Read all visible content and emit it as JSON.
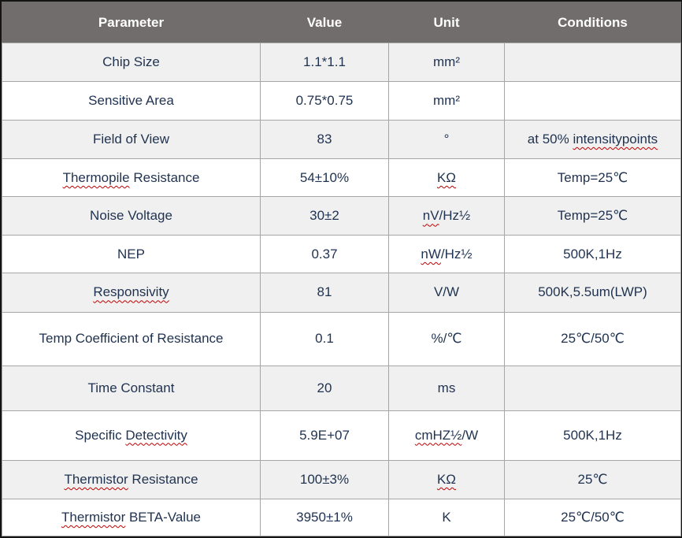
{
  "colors": {
    "header_bg": "#716d6c",
    "header_text": "#ffffff",
    "body_text": "#1f3250",
    "row_alt_bg": "#f0f0f0",
    "row_bg": "#ffffff",
    "grid_border": "#a6a6a6",
    "outer_border": "#141414",
    "squiggle": "#c00000"
  },
  "table": {
    "columns": [
      "Parameter",
      "Value",
      "Unit",
      "Conditions"
    ],
    "rows": [
      {
        "parameter": {
          "text": "Chip Size"
        },
        "value": {
          "text": "1.1*1.1"
        },
        "unit": {
          "text": "mm²"
        },
        "conditions": {
          "text": ""
        }
      },
      {
        "parameter": {
          "text": "Sensitive Area"
        },
        "value": {
          "text": "0.75*0.75"
        },
        "unit": {
          "text": "mm²"
        },
        "conditions": {
          "text": ""
        }
      },
      {
        "parameter": {
          "text": "Field of View"
        },
        "value": {
          "text": "83"
        },
        "unit": {
          "text": "°"
        },
        "conditions": {
          "text": "at 50% intensitypoints",
          "misspelled": [
            "intensitypoints"
          ]
        }
      },
      {
        "parameter": {
          "text": "Thermopile Resistance",
          "misspelled": [
            "Thermopile"
          ]
        },
        "value": {
          "text": "54±10%"
        },
        "unit": {
          "text": "KΩ",
          "misspelled": [
            "KΩ"
          ]
        },
        "conditions": {
          "text": "Temp=25℃"
        }
      },
      {
        "parameter": {
          "text": "Noise Voltage"
        },
        "value": {
          "text": "30±2"
        },
        "unit": {
          "text": "nV/Hz½",
          "misspelled": [
            "nV"
          ]
        },
        "conditions": {
          "text": "Temp=25℃"
        }
      },
      {
        "parameter": {
          "text": "NEP"
        },
        "value": {
          "text": "0.37"
        },
        "unit": {
          "text": "nW/Hz½",
          "misspelled": [
            "nW"
          ]
        },
        "conditions": {
          "text": "500K,1Hz"
        }
      },
      {
        "parameter": {
          "text": "Responsivity",
          "misspelled": [
            "Responsivity"
          ]
        },
        "value": {
          "text": "81"
        },
        "unit": {
          "text": "V/W"
        },
        "conditions": {
          "text": "500K,5.5um(LWP)"
        }
      },
      {
        "parameter": {
          "text": "Temp Coefficient of Resistance"
        },
        "value": {
          "text": "0.1"
        },
        "unit": {
          "text": "%/℃"
        },
        "conditions": {
          "text": "25℃/50℃"
        }
      },
      {
        "parameter": {
          "text": "Time Constant"
        },
        "value": {
          "text": "20"
        },
        "unit": {
          "text": "ms"
        },
        "conditions": {
          "text": ""
        }
      },
      {
        "parameter": {
          "text": "Specific Detectivity",
          "misspelled": [
            "Detectivity"
          ]
        },
        "value": {
          "text": "5.9E+07"
        },
        "unit": {
          "text": "cmHZ½/W",
          "misspelled": [
            "cmHZ½"
          ]
        },
        "conditions": {
          "text": "500K,1Hz"
        }
      },
      {
        "parameter": {
          "text": "Thermistor Resistance",
          "misspelled": [
            "Thermistor"
          ]
        },
        "value": {
          "text": "100±3%"
        },
        "unit": {
          "text": "KΩ",
          "misspelled": [
            "KΩ"
          ]
        },
        "conditions": {
          "text": "25℃"
        }
      },
      {
        "parameter": {
          "text": "Thermistor BETA-Value",
          "misspelled": [
            "Thermistor"
          ]
        },
        "value": {
          "text": "3950±1%"
        },
        "unit": {
          "text": "K"
        },
        "conditions": {
          "text": "25℃/50℃"
        }
      }
    ]
  }
}
